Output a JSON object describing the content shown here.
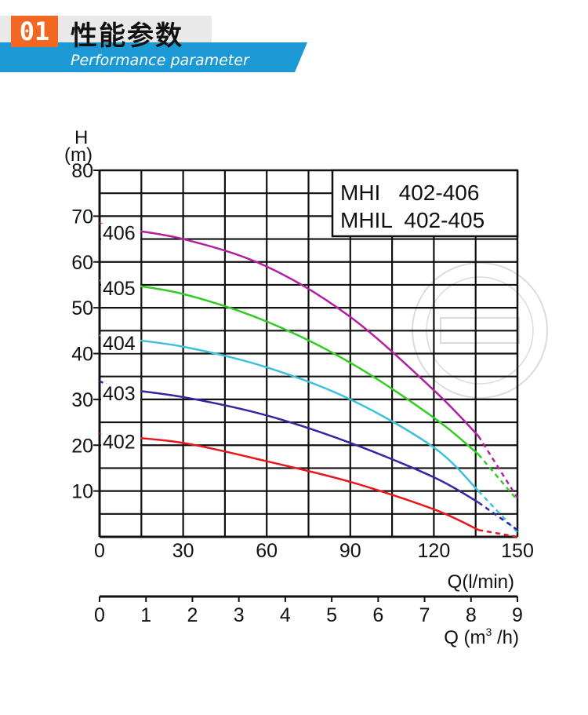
{
  "header": {
    "number": "01",
    "title": "性能参数",
    "subtitle": "Performance parameter",
    "accent_color": "#f26722",
    "banner_color": "#1c9ad6"
  },
  "chart_data": {
    "type": "line",
    "title_lines": [
      "MHI   402-406",
      "MHIL  402-405"
    ],
    "ylabel_top": "H",
    "ylabel_unit": "(m)",
    "xlabel_lpm": "Q(l/min)",
    "xlabel_m3h_prefix": "Q (m",
    "xlabel_m3h_sup": "3",
    "xlabel_m3h_suffix": " /h)",
    "ylim": [
      0,
      80
    ],
    "xlim": [
      0,
      150
    ],
    "yticks": [
      "10",
      "20",
      "30",
      "40",
      "50",
      "60",
      "70",
      "80"
    ],
    "xticks_lpm": [
      "0",
      "30",
      "60",
      "90",
      "120",
      "150"
    ],
    "xticks_m3h": [
      "0",
      "1",
      "2",
      "3",
      "4",
      "5",
      "6",
      "7",
      "8",
      "9"
    ],
    "grid": true,
    "series": [
      {
        "name": "406",
        "color": "#b21fa0",
        "x": [
          0,
          5,
          30,
          60,
          90,
          120,
          136,
          150
        ],
        "y": [
          68.5,
          67.5,
          65,
          59,
          48,
          32,
          22,
          8.5
        ],
        "dashed_until": 5,
        "dashed_from": 136
      },
      {
        "name": "405",
        "color": "#33cc22",
        "x": [
          0,
          5,
          30,
          60,
          90,
          120,
          136,
          150
        ],
        "y": [
          56,
          55.5,
          53,
          47,
          38,
          26,
          18,
          8
        ],
        "dashed_until": 5,
        "dashed_from": 136
      },
      {
        "name": "404",
        "color": "#3ec0dc",
        "x": [
          0,
          5,
          30,
          60,
          90,
          120,
          136,
          150
        ],
        "y": [
          44,
          43.5,
          41.5,
          37,
          30,
          19.5,
          10,
          1
        ],
        "dashed_until": 5,
        "dashed_from": 136
      },
      {
        "name": "403",
        "color": "#3227a0",
        "x": [
          0,
          5,
          30,
          60,
          90,
          120,
          136,
          150
        ],
        "y": [
          34,
          32.5,
          30.5,
          26.5,
          20.5,
          13,
          7.5,
          1.5
        ],
        "dashed_until": 5,
        "dashed_from": 136
      },
      {
        "name": "402",
        "color": "#e8171d",
        "x": [
          0,
          5,
          30,
          60,
          90,
          120,
          136,
          150
        ],
        "y": [
          22.5,
          22,
          20.5,
          16.5,
          12,
          6,
          1.5,
          0
        ],
        "dashed_until": 5,
        "dashed_from": 136
      }
    ]
  }
}
